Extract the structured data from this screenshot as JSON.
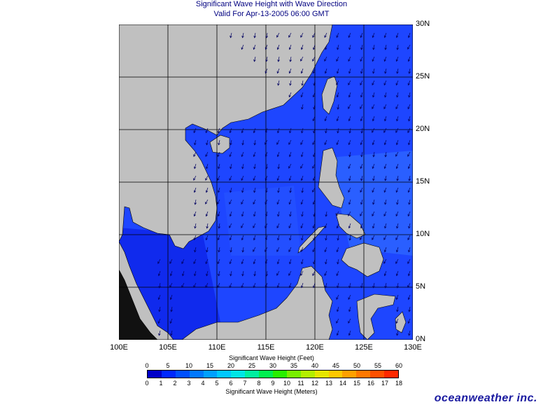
{
  "title": {
    "line1": "Significant Wave Height with Wave Direction",
    "line2": "Valid For Apr-13-2005 06:00 GMT"
  },
  "map": {
    "lon_range": [
      100,
      130
    ],
    "lat_range": [
      0,
      30
    ],
    "lon_labels": [
      "100E",
      "105E",
      "110E",
      "115E",
      "120E",
      "125E",
      "130E"
    ],
    "lat_labels": [
      "30N",
      "25N",
      "20N",
      "15N",
      "10N",
      "5N",
      "0N"
    ],
    "land_color": "#c0c0c0",
    "grid_color": "#000000",
    "arrow_color": "#000060",
    "wave_colors": {
      "dark": "#0a1ee6",
      "mid": "#1e46ff",
      "light": "#3270ff"
    }
  },
  "colorbar": {
    "feet_title": "Significant Wave Height (Feet)",
    "meters_title": "Significant Wave Height (Meters)",
    "feet_ticks": [
      "0",
      "5",
      "10",
      "15",
      "20",
      "25",
      "30",
      "35",
      "40",
      "45",
      "50",
      "55",
      "60"
    ],
    "meter_ticks": [
      "0",
      "1",
      "2",
      "3",
      "4",
      "5",
      "6",
      "7",
      "8",
      "9",
      "10",
      "11",
      "12",
      "13",
      "14",
      "15",
      "16",
      "17",
      "18"
    ],
    "colors": [
      "#0000c8",
      "#0028ff",
      "#0050ff",
      "#0078ff",
      "#00a0ff",
      "#00c8ff",
      "#00e6e6",
      "#00f0a0",
      "#00f050",
      "#28f000",
      "#78f000",
      "#b4f000",
      "#e6e600",
      "#ffc800",
      "#ffa000",
      "#ff7800",
      "#ff5000",
      "#ff2800"
    ]
  },
  "brand": "oceanweather inc."
}
